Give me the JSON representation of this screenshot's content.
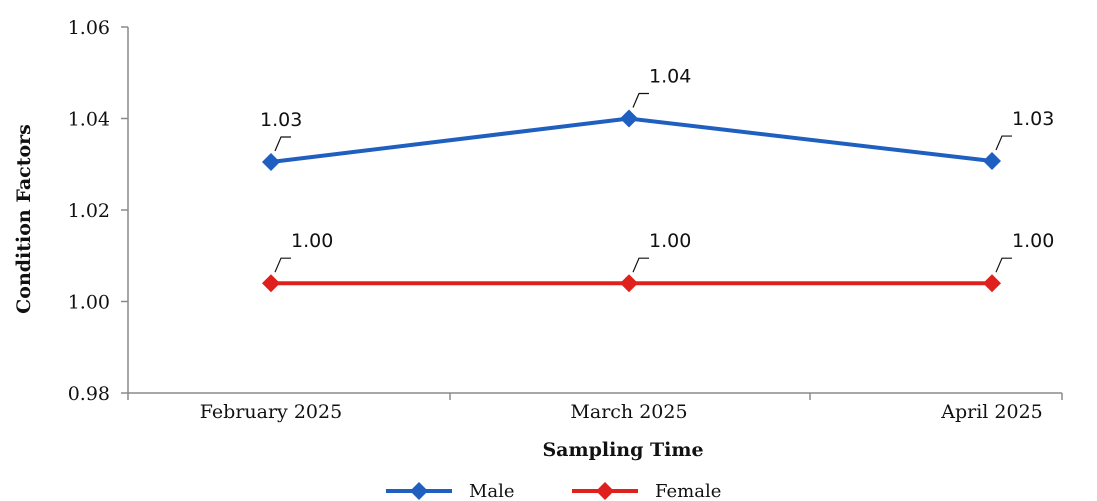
{
  "chart_data": {
    "type": "line",
    "categories": [
      "February 2025",
      "March 2025",
      "April 2025"
    ],
    "series": [
      {
        "name": "Male",
        "values": [
          1.03,
          1.04,
          1.03
        ],
        "plot_values": [
          1.0305,
          1.04,
          1.0307
        ],
        "labels": [
          "1.03",
          "1.04",
          "1.03"
        ],
        "color": "#1f5fbf"
      },
      {
        "name": "Female",
        "values": [
          1.0,
          1.0,
          1.0
        ],
        "plot_values": [
          1.004,
          1.004,
          1.004
        ],
        "labels": [
          "1.00",
          "1.00",
          "1.00"
        ],
        "color": "#e0201c"
      }
    ],
    "xlabel": "Sampling Time",
    "ylabel": "Condition Factors",
    "ylim": [
      0.98,
      1.06
    ],
    "yticks": [
      "0.98",
      "1.00",
      "1.02",
      "1.04",
      "1.06"
    ],
    "grid": false,
    "legend": "bottom"
  }
}
